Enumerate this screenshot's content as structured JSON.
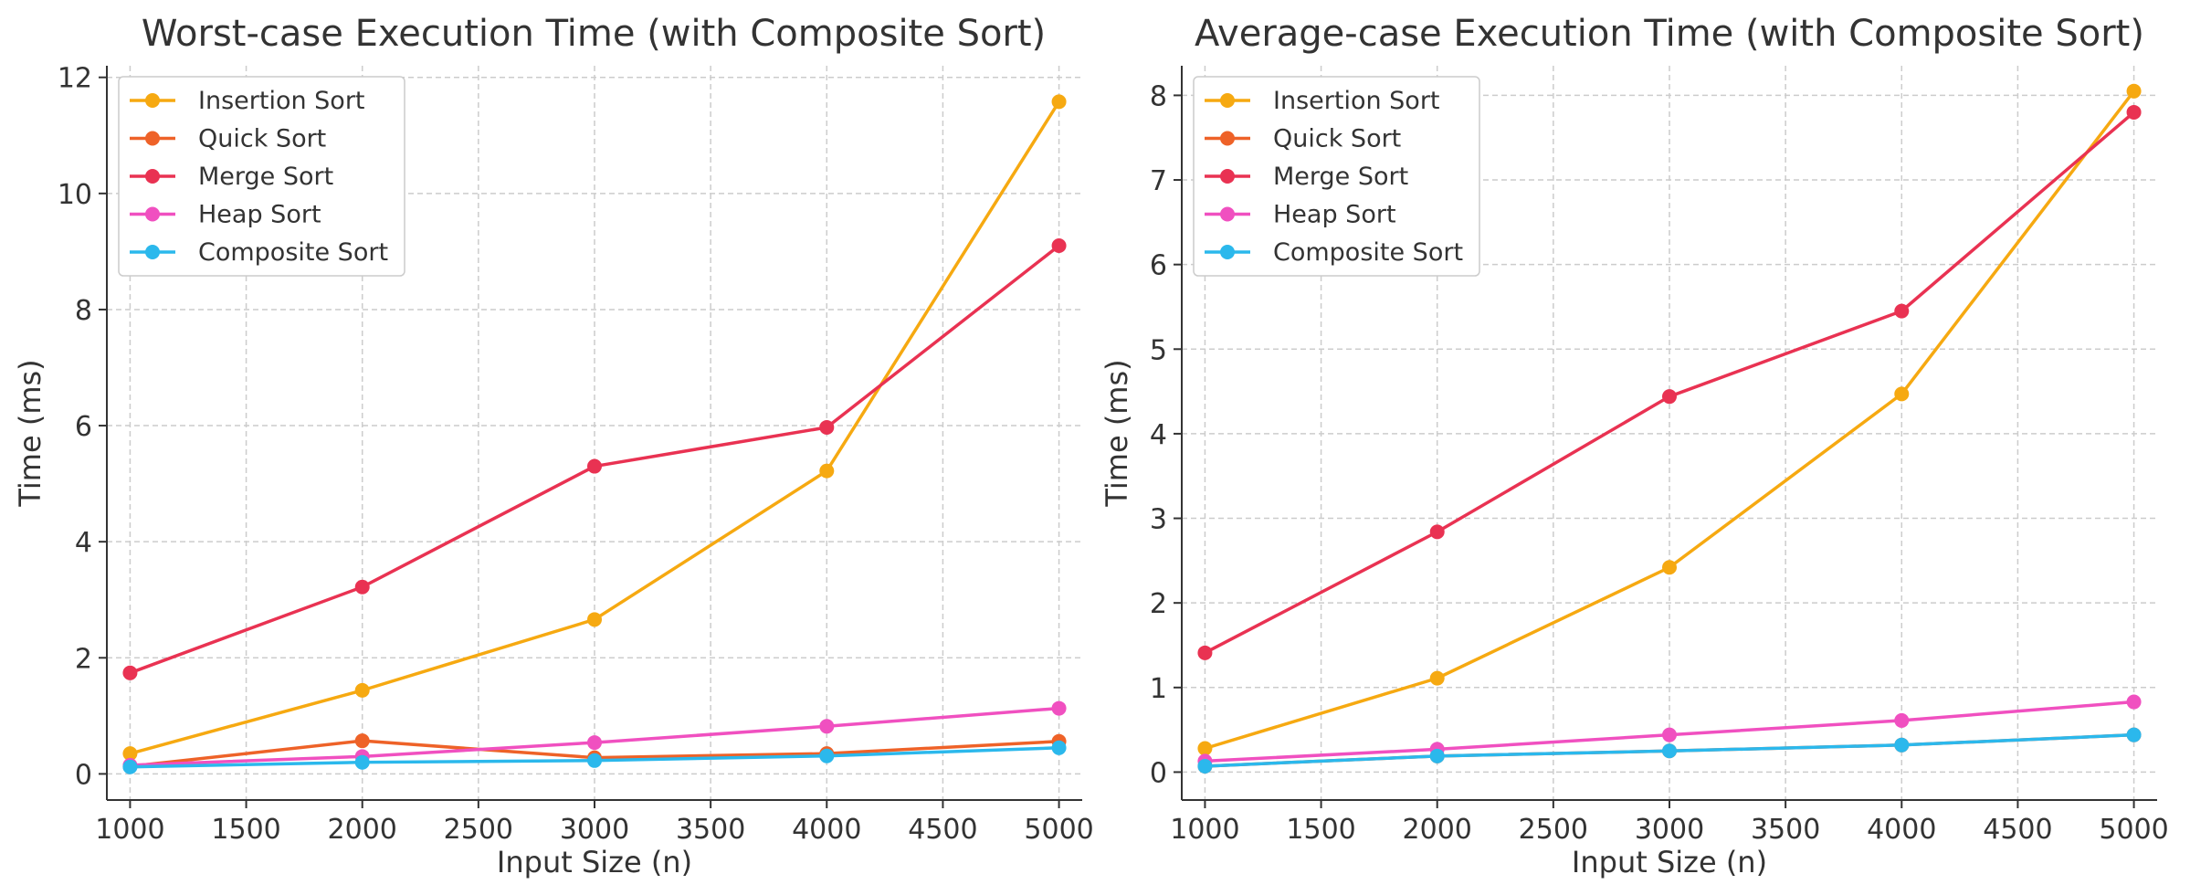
{
  "chart_data": [
    {
      "type": "line",
      "title": "Worst-case Execution Time (with Composite Sort)",
      "xlabel": "Input Size (n)",
      "ylabel": "Time (ms)",
      "x": [
        1000,
        2000,
        3000,
        4000,
        5000
      ],
      "xlim": [
        900,
        5100
      ],
      "ylim": [
        -0.45,
        12.2
      ],
      "xticks": [
        1000,
        1500,
        2000,
        2500,
        3000,
        3500,
        4000,
        4500,
        5000
      ],
      "yticks": [
        0,
        2,
        4,
        6,
        8,
        10,
        12
      ],
      "grid": true,
      "legend_position": "top-left",
      "series": [
        {
          "name": "Insertion Sort",
          "color": "#f6a911",
          "values": [
            0.35,
            1.44,
            2.66,
            5.22,
            11.58
          ]
        },
        {
          "name": "Quick Sort",
          "color": "#ee6228",
          "values": [
            0.13,
            0.57,
            0.28,
            0.35,
            0.56
          ]
        },
        {
          "name": "Merge Sort",
          "color": "#e93252",
          "values": [
            1.74,
            3.22,
            5.3,
            5.97,
            9.1
          ]
        },
        {
          "name": "Heap Sort",
          "color": "#f050c0",
          "values": [
            0.15,
            0.3,
            0.54,
            0.82,
            1.13
          ]
        },
        {
          "name": "Composite Sort",
          "color": "#2bb8ec",
          "values": [
            0.12,
            0.2,
            0.23,
            0.31,
            0.45
          ]
        }
      ]
    },
    {
      "type": "line",
      "title": "Average-case Execution Time (with Composite Sort)",
      "xlabel": "Input Size (n)",
      "ylabel": "Time (ms)",
      "x": [
        1000,
        2000,
        3000,
        4000,
        5000
      ],
      "xlim": [
        900,
        5100
      ],
      "ylim": [
        -0.33,
        8.35
      ],
      "xticks": [
        1000,
        1500,
        2000,
        2500,
        3000,
        3500,
        4000,
        4500,
        5000
      ],
      "yticks": [
        0,
        1,
        2,
        3,
        4,
        5,
        6,
        7,
        8
      ],
      "grid": true,
      "legend_position": "top-left",
      "series": [
        {
          "name": "Insertion Sort",
          "color": "#f6a911",
          "values": [
            0.28,
            1.11,
            2.42,
            4.47,
            8.05
          ]
        },
        {
          "name": "Quick Sort",
          "color": "#ee6228",
          "values": [
            0.07,
            0.19,
            0.25,
            0.32,
            0.44
          ]
        },
        {
          "name": "Merge Sort",
          "color": "#e93252",
          "values": [
            1.41,
            2.84,
            4.44,
            5.45,
            7.8
          ]
        },
        {
          "name": "Heap Sort",
          "color": "#f050c0",
          "values": [
            0.13,
            0.27,
            0.44,
            0.61,
            0.83
          ]
        },
        {
          "name": "Composite Sort",
          "color": "#2bb8ec",
          "values": [
            0.07,
            0.19,
            0.25,
            0.32,
            0.44
          ]
        }
      ]
    }
  ]
}
